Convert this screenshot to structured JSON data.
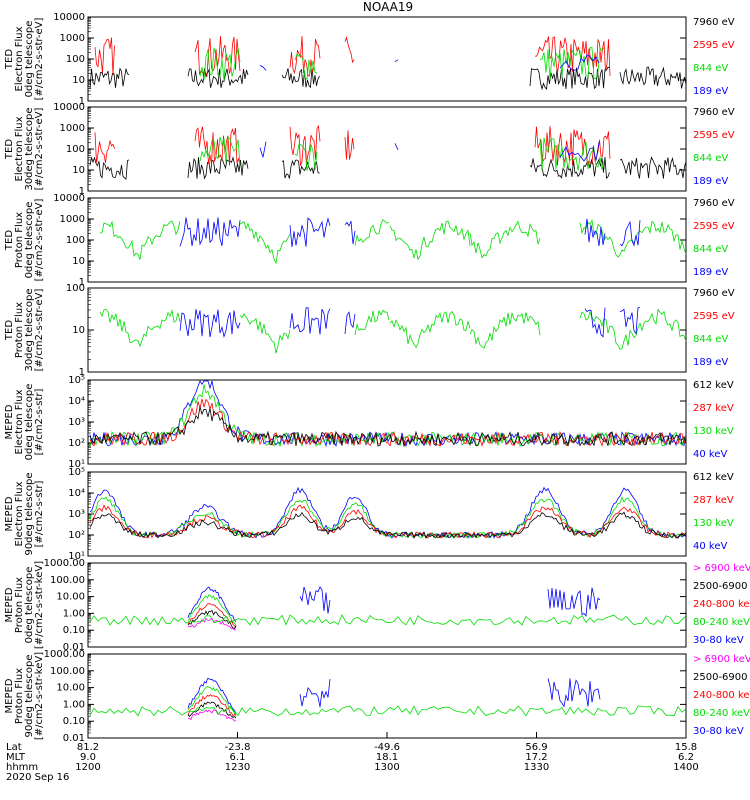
{
  "title": "NOAA19",
  "colors": {
    "black": "#000000",
    "red": "#ff0000",
    "green": "#00dd00",
    "blue": "#0000ff",
    "magenta": "#ff00ff"
  },
  "chart_data": [
    {
      "type": "line",
      "ylabel": [
        "TED",
        "Electron Flux",
        "0deg telescope",
        "[#/cm2-s-str-eV]"
      ],
      "yscale": "log",
      "ylim": [
        1,
        10000
      ],
      "yticks": [
        "1",
        "10",
        "100",
        "1000",
        "10000"
      ],
      "legend": [
        {
          "label": "7960 eV",
          "color": "black"
        },
        {
          "label": "2595 eV",
          "color": "red"
        },
        {
          "label": "844 eV",
          "color": "green"
        },
        {
          "label": "189 eV",
          "color": "blue"
        }
      ]
    },
    {
      "type": "line",
      "ylabel": [
        "TED",
        "Electron Flux",
        "30deg telescope",
        "[#/cm2-s-str-eV]"
      ],
      "yscale": "log",
      "ylim": [
        1,
        10000
      ],
      "yticks": [
        "1",
        "10",
        "100",
        "1000",
        "10000"
      ],
      "legend": [
        {
          "label": "7960 eV",
          "color": "black"
        },
        {
          "label": "2595 eV",
          "color": "red"
        },
        {
          "label": "844 eV",
          "color": "green"
        },
        {
          "label": "189 eV",
          "color": "blue"
        }
      ]
    },
    {
      "type": "line",
      "ylabel": [
        "TED",
        "Proton Flux",
        "0deg telescope",
        "[#/cm2-s-str-eV]"
      ],
      "yscale": "log",
      "ylim": [
        1,
        10000
      ],
      "yticks": [
        "1",
        "10",
        "100",
        "1000",
        "10000"
      ],
      "legend": [
        {
          "label": "7960 eV",
          "color": "black"
        },
        {
          "label": "2595 eV",
          "color": "red"
        },
        {
          "label": "844 eV",
          "color": "green"
        },
        {
          "label": "189 eV",
          "color": "blue"
        }
      ]
    },
    {
      "type": "line",
      "ylabel": [
        "TED",
        "Proton Flux",
        "30deg telescope",
        "[#/cm2-s-str-eV]"
      ],
      "yscale": "log",
      "ylim": [
        1,
        1000
      ],
      "yticks": [
        "1",
        "10",
        "100"
      ],
      "legend": [
        {
          "label": "7960 eV",
          "color": "black"
        },
        {
          "label": "2595 eV",
          "color": "red"
        },
        {
          "label": "844 eV",
          "color": "green"
        },
        {
          "label": "189 eV",
          "color": "blue"
        }
      ]
    },
    {
      "type": "line",
      "ylabel": [
        "MEPED",
        "Electron Flux",
        "0deg telescope",
        "[#/cm2-s-str]"
      ],
      "yscale": "log",
      "ylim": [
        10,
        100000
      ],
      "yticks": [
        "10¹",
        "10²",
        "10³",
        "10⁴",
        "10⁵"
      ],
      "legend": [
        {
          "label": "612 keV",
          "color": "black"
        },
        {
          "label": "287 keV",
          "color": "red"
        },
        {
          "label": "130 keV",
          "color": "green"
        },
        {
          "label": "40 keV",
          "color": "blue"
        }
      ]
    },
    {
      "type": "line",
      "ylabel": [
        "MEPED",
        "Electron Flux",
        "90deg telescope",
        "[#/cm2-s-str]"
      ],
      "yscale": "log",
      "ylim": [
        10,
        100000
      ],
      "yticks": [
        "10¹",
        "10²",
        "10³",
        "10⁴",
        "10⁵"
      ],
      "legend": [
        {
          "label": "612 keV",
          "color": "black"
        },
        {
          "label": "287 keV",
          "color": "red"
        },
        {
          "label": "130 keV",
          "color": "green"
        },
        {
          "label": "40 keV",
          "color": "blue"
        }
      ]
    },
    {
      "type": "line",
      "ylabel": [
        "MEPED",
        "Proton Flux",
        "0deg telescope",
        "[#/cm2-s-str-keV]"
      ],
      "yscale": "log",
      "ylim": [
        0.01,
        1000
      ],
      "yticks": [
        "0.01",
        "0.10",
        "1.00",
        "10.00",
        "100.00",
        "1000.00"
      ],
      "legend": [
        {
          "label": "> 6900 keV",
          "color": "magenta"
        },
        {
          "label": "2500-6900",
          "color": "black"
        },
        {
          "label": "240-800 keV",
          "color": "red"
        },
        {
          "label": "80-240 keV",
          "color": "green"
        },
        {
          "label": "30-80 keV",
          "color": "blue"
        }
      ]
    },
    {
      "type": "line",
      "ylabel": [
        "MEPED",
        "Proton Flux",
        "90deg telescope",
        "[#/cm2-s-str-keV]"
      ],
      "yscale": "log",
      "ylim": [
        0.01,
        1000
      ],
      "yticks": [
        "0.01",
        "0.10",
        "1.00",
        "10.00",
        "100.00",
        "1000.00"
      ],
      "legend": [
        {
          "label": "> 6900 keV",
          "color": "magenta"
        },
        {
          "label": "2500-6900",
          "color": "black"
        },
        {
          "label": "240-800 keV",
          "color": "red"
        },
        {
          "label": "80-240 keV",
          "color": "green"
        },
        {
          "label": "30-80 keV",
          "color": "blue"
        }
      ]
    }
  ],
  "xaxis": {
    "row_labels": [
      "Lat",
      "MLT",
      "hhmm"
    ],
    "ticks": [
      {
        "lat": "81.2",
        "mlt": "9.0",
        "hhmm": "1200"
      },
      {
        "lat": "-23.8",
        "mlt": "6.1",
        "hhmm": "1230"
      },
      {
        "lat": "-49.6",
        "mlt": "18.1",
        "hhmm": "1300"
      },
      {
        "lat": "56.9",
        "mlt": "17.2",
        "hhmm": "1330"
      },
      {
        "lat": "15.8",
        "mlt": "6.2",
        "hhmm": "1400"
      }
    ],
    "date": "2020 Sep 16"
  }
}
